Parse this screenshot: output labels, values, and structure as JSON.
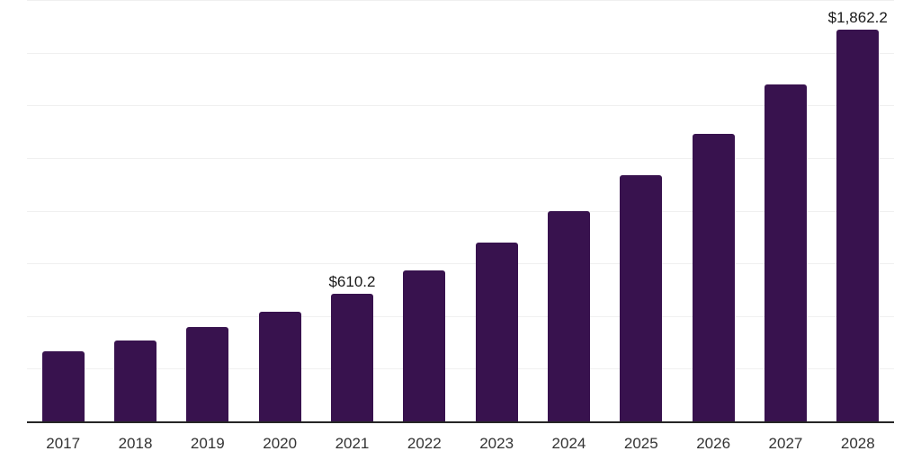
{
  "chart_data": {
    "type": "bar",
    "title": "",
    "xlabel": "",
    "ylabel": "",
    "categories": [
      "2017",
      "2018",
      "2019",
      "2020",
      "2021",
      "2022",
      "2023",
      "2024",
      "2025",
      "2026",
      "2027",
      "2028"
    ],
    "values": [
      337,
      390,
      452,
      523,
      610.2,
      722,
      851,
      1002,
      1172,
      1369,
      1604,
      1862.2
    ],
    "data_labels": [
      "",
      "",
      "",
      "",
      "$610.2",
      "",
      "",
      "",
      "",
      "",
      "",
      "$1,862.2"
    ],
    "ylim": [
      0,
      2000
    ],
    "grid_step": 250,
    "grid": true,
    "legend": false,
    "bar_color": "#38124E",
    "axis_line_color": "#262626",
    "grid_line_color": "#f0f0f0",
    "data_label_color": "#1a1a1a",
    "tick_label_color": "#333333"
  }
}
